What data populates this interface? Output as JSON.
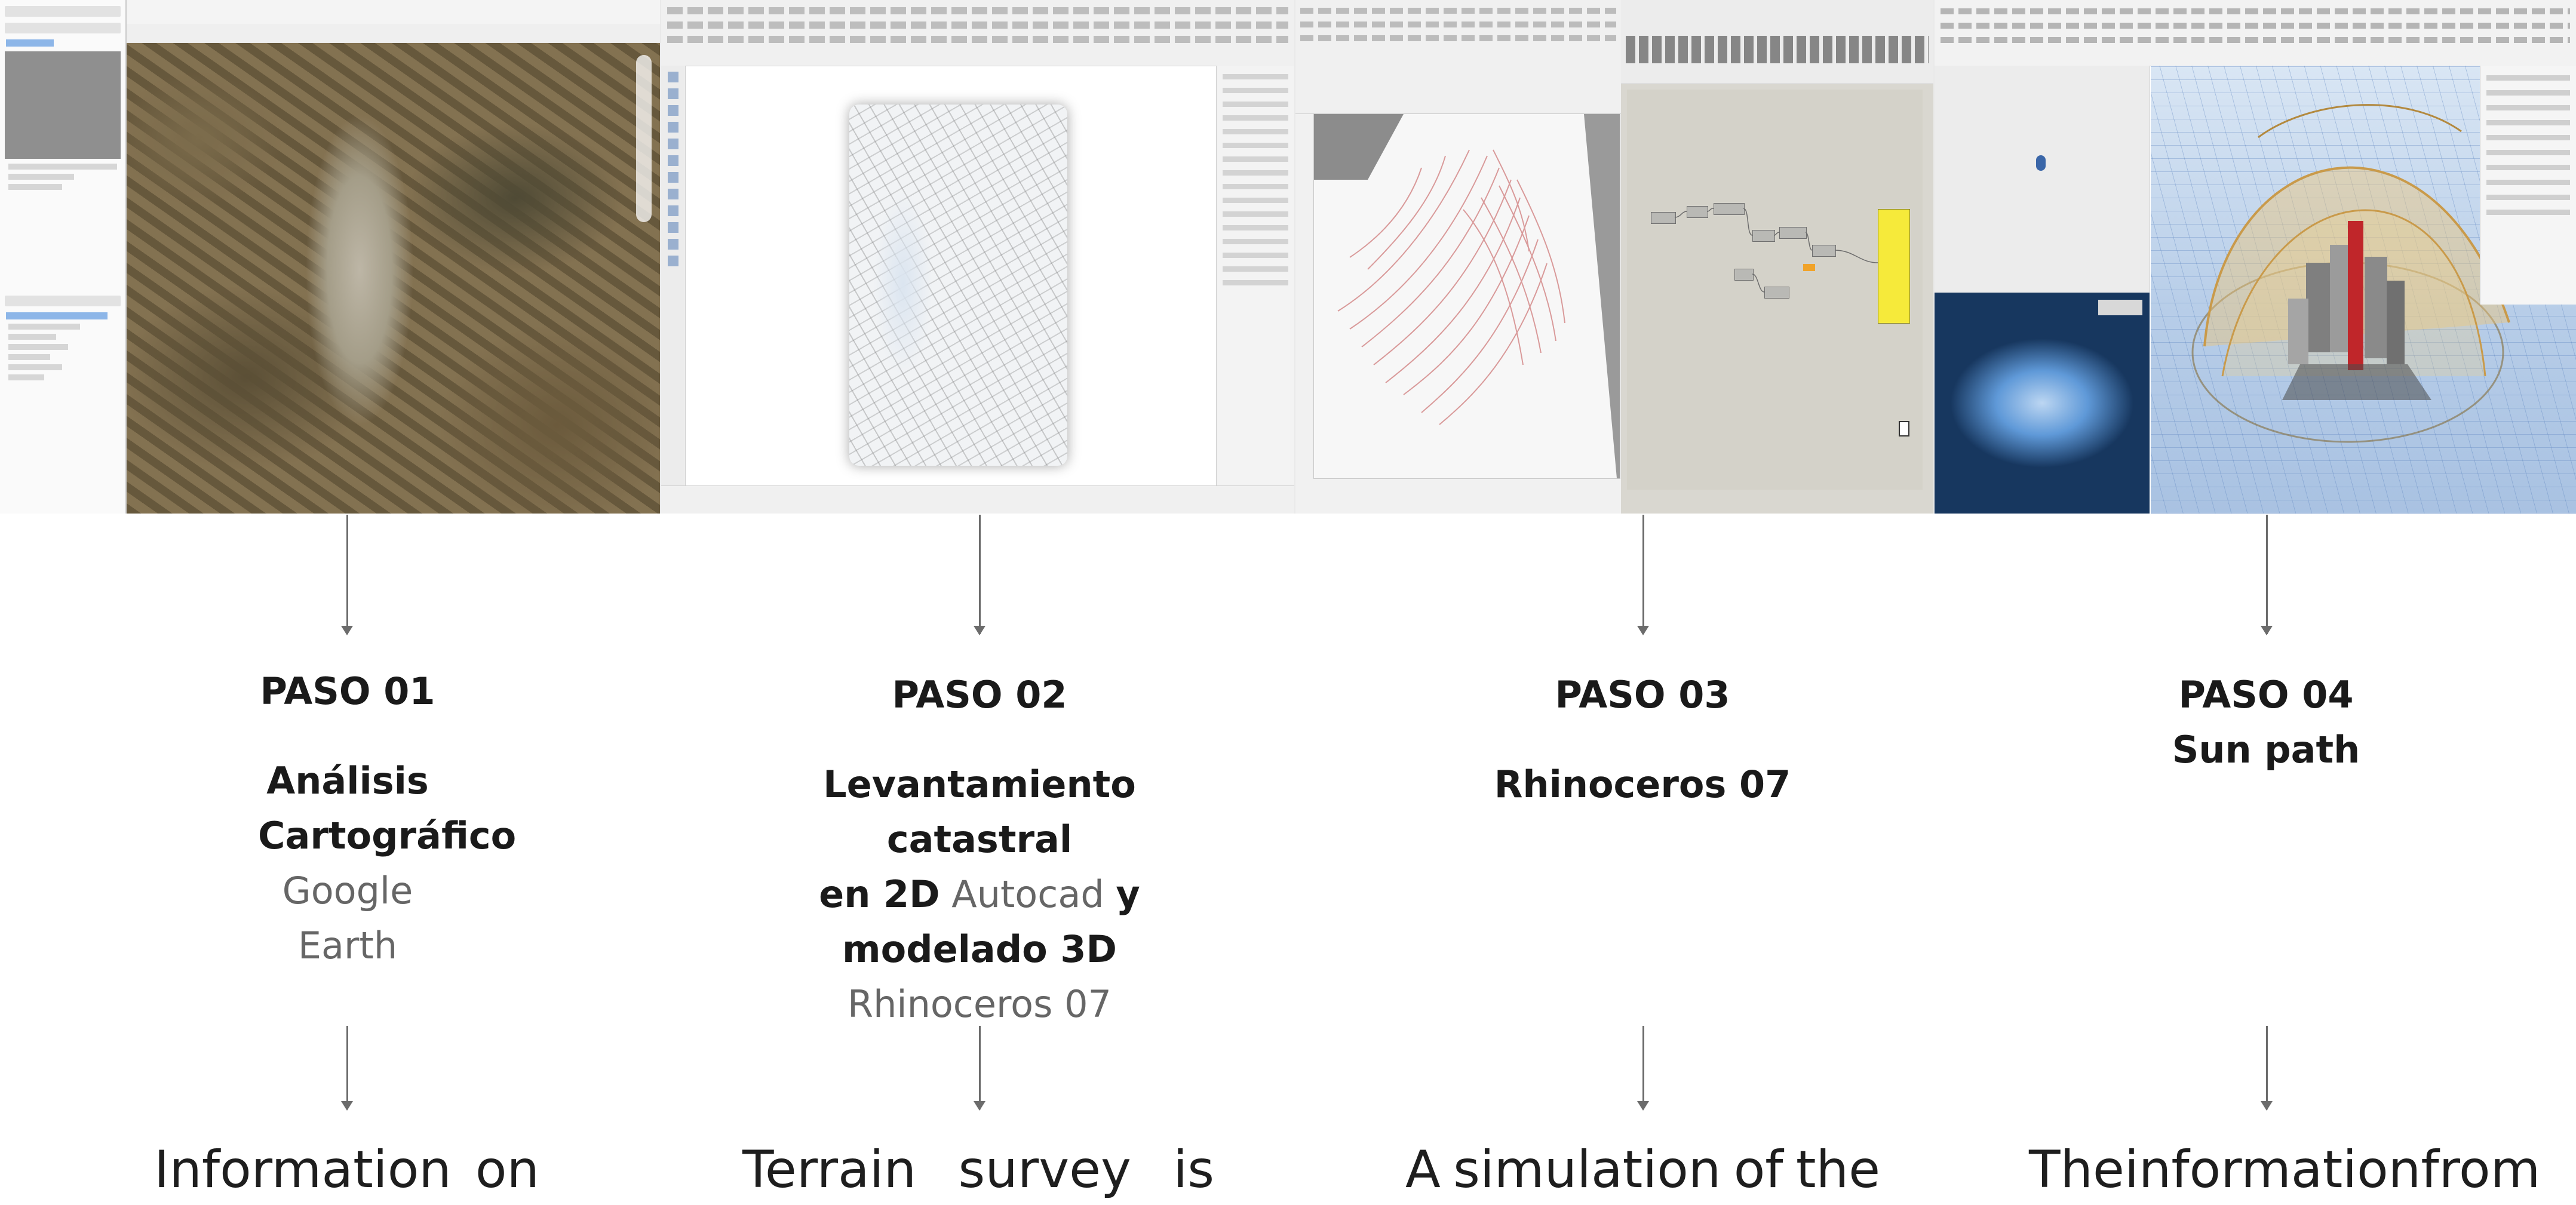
{
  "steps": [
    {
      "title": "PASO 01",
      "subtitle": "",
      "heading_bold": "Análisis Cartográfico",
      "tool": "Google Earth",
      "description_words": [
        "Information",
        "on"
      ],
      "screenshot": "google-earth-satellite-view"
    },
    {
      "title": "PASO 02",
      "subtitle": "",
      "heading_bold_1": "Levantamiento catastral",
      "heading_bold_2": "en 2D",
      "tool_1": "Autocad",
      "heading_bold_3": "y",
      "heading_bold_4": "modelado 3D",
      "tool_2": "Rhinoceros 07",
      "description_words": [
        "Terrain",
        "survey",
        "is"
      ],
      "screenshot": "cadastral-2d-drawing"
    },
    {
      "title": "PASO 03",
      "subtitle": "",
      "heading_bold": "Rhinoceros 07",
      "description_words": [
        "A",
        "simulation",
        "of",
        "the"
      ],
      "screenshot": "rhino-grasshopper-definition"
    },
    {
      "title": "PASO 04",
      "subtitle": "Sun path",
      "description_words": [
        "The",
        "information",
        "from"
      ],
      "screenshot": "ladybug-sun-path-3d"
    }
  ],
  "colors": {
    "text": "#1a1a1a",
    "muted_text": "#666666",
    "arrow": "#6c6c6c",
    "highlight_yellow": "#f6ea3a",
    "building_red": "#c0262a"
  }
}
